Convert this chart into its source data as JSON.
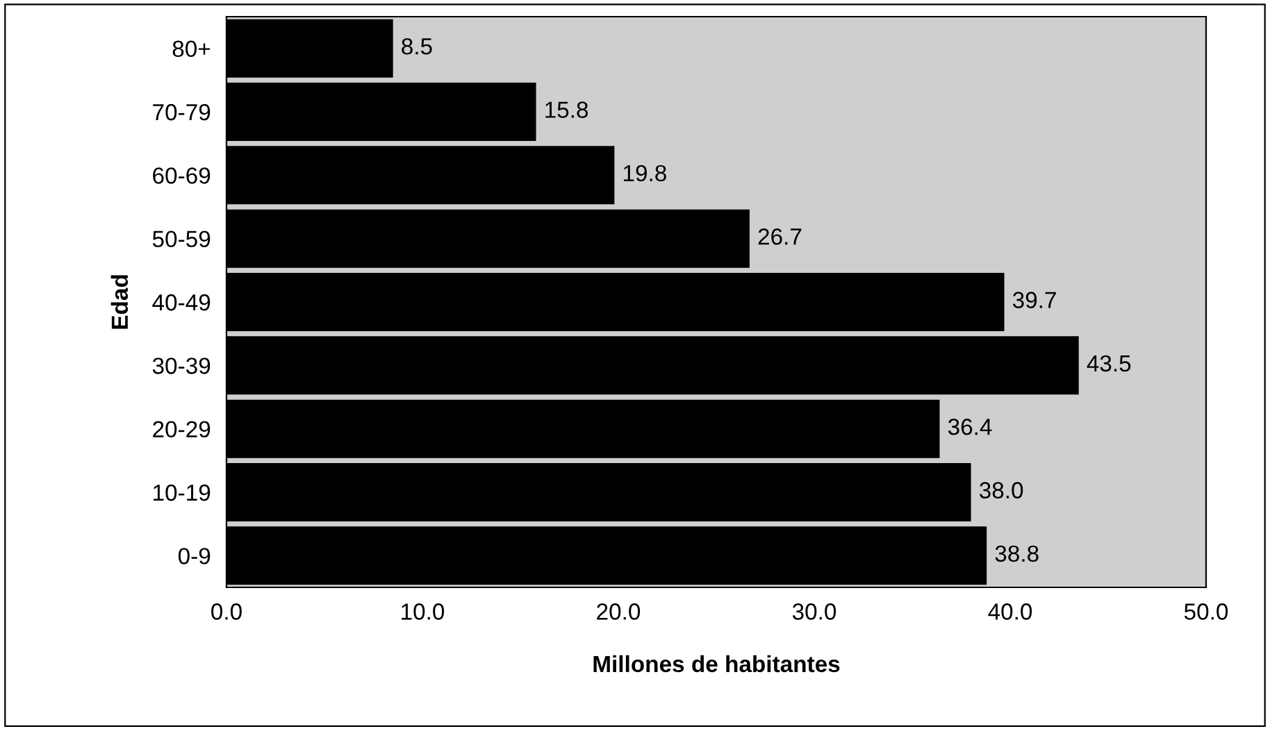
{
  "chart_data": {
    "type": "bar",
    "orientation": "horizontal",
    "ylabel": "Edad",
    "xlabel": "Millones de habitantes",
    "categories": [
      "80+",
      "70-79",
      "60-69",
      "50-59",
      "40-49",
      "30-39",
      "20-29",
      "10-19",
      "0-9"
    ],
    "values": [
      8.5,
      15.8,
      19.8,
      26.7,
      39.7,
      43.5,
      36.4,
      38.0,
      38.8
    ],
    "value_labels": [
      "8.5",
      "15.8",
      "19.8",
      "26.7",
      "39.7",
      "43.5",
      "36.4",
      "38.0",
      "38.8"
    ],
    "color": "#000000",
    "xlim": [
      0,
      50
    ],
    "xticks": [
      {
        "value": 0,
        "label": "0.0"
      },
      {
        "value": 10,
        "label": "10.0"
      },
      {
        "value": 20,
        "label": "20.0"
      },
      {
        "value": 30,
        "label": "30.0"
      },
      {
        "value": 40,
        "label": "40.0"
      },
      {
        "value": 50,
        "label": "50.0"
      }
    ],
    "grid": false,
    "legend": false
  }
}
